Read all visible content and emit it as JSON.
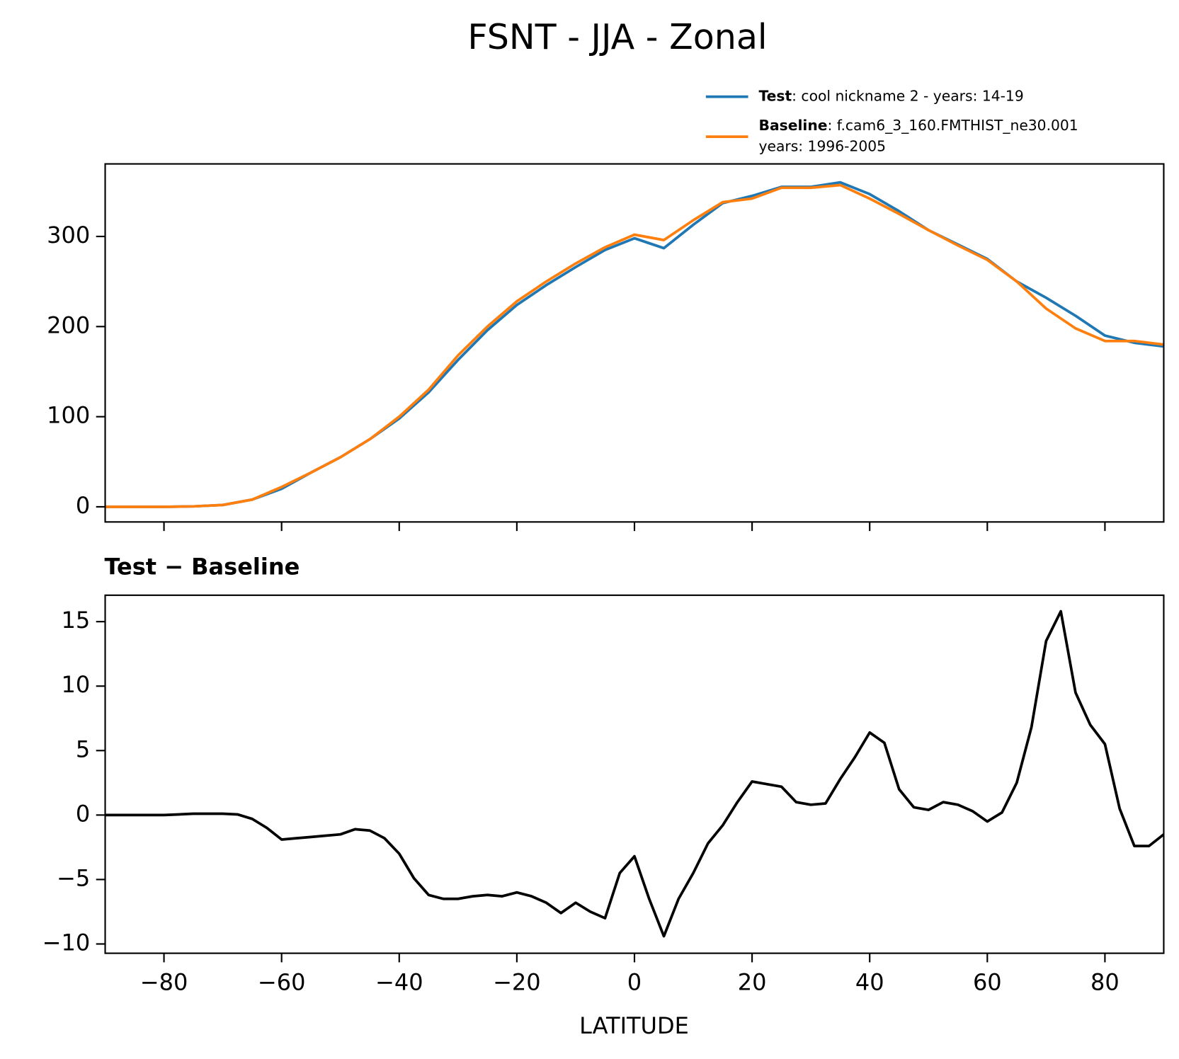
{
  "chart_data": [
    {
      "type": "line",
      "title": "FSNT - JJA - Zonal",
      "x": [
        -90,
        -85,
        -80,
        -75,
        -70,
        -65,
        -60,
        -55,
        -50,
        -45,
        -40,
        -35,
        -30,
        -25,
        -20,
        -15,
        -10,
        -5,
        0,
        5,
        10,
        15,
        20,
        25,
        30,
        35,
        40,
        45,
        50,
        55,
        60,
        65,
        70,
        75,
        80,
        85,
        90
      ],
      "series": [
        {
          "name": "Test",
          "label": ": cool nickname 2 - years: 14-19",
          "color": "#1f77b4",
          "values": [
            0,
            0,
            0,
            0.5,
            2,
            8,
            20,
            38,
            55,
            75,
            98,
            127,
            163,
            196,
            224,
            246,
            266,
            285,
            298,
            287,
            313,
            337,
            345,
            355,
            355,
            360,
            347,
            328,
            307,
            291,
            275,
            250,
            232,
            212,
            190,
            182,
            178
          ]
        },
        {
          "name": "Baseline",
          "label": ": f.cam6_3_160.FMTHIST_ne30.001",
          "label2": "years: 1996-2005",
          "color": "#ff7f0e",
          "values": [
            0,
            0,
            0,
            0.5,
            2,
            8,
            22,
            38,
            55,
            75,
            100,
            130,
            168,
            200,
            228,
            250,
            270,
            288,
            302,
            296,
            318,
            338,
            342,
            354,
            354,
            357,
            342,
            325,
            307,
            290,
            274,
            250,
            220,
            198,
            184,
            184,
            180
          ]
        }
      ],
      "xlim": [
        -90,
        90
      ],
      "xticks": [
        -80,
        -60,
        -40,
        -20,
        0,
        20,
        40,
        60,
        80
      ],
      "ylim": [
        -16.8,
        380.5
      ],
      "yticks": [
        0,
        100,
        200,
        300
      ]
    },
    {
      "type": "line",
      "title": "Test − Baseline",
      "xlabel": "LATITUDE",
      "x": [
        -90,
        -87.5,
        -85,
        -82.5,
        -80,
        -77.5,
        -75,
        -72.5,
        -70,
        -67.5,
        -65,
        -62.5,
        -60,
        -57.5,
        -55,
        -52.5,
        -50,
        -47.5,
        -45,
        -42.5,
        -40,
        -37.5,
        -35,
        -32.5,
        -30,
        -27.5,
        -25,
        -22.5,
        -20,
        -17.5,
        -15,
        -12.5,
        -10,
        -7.5,
        -5,
        -2.5,
        0,
        2.5,
        5,
        7.5,
        10,
        12.5,
        15,
        17.5,
        20,
        22.5,
        25,
        27.5,
        30,
        32.5,
        35,
        37.5,
        40,
        42.5,
        45,
        47.5,
        50,
        52.5,
        55,
        57.5,
        60,
        62.5,
        65,
        67.5,
        70,
        72.5,
        75,
        77.5,
        80,
        82.5,
        85,
        87.5,
        90
      ],
      "series": [
        {
          "color": "#000000",
          "values": [
            0,
            0,
            0,
            0,
            0,
            0.05,
            0.1,
            0.1,
            0.1,
            0.05,
            -0.3,
            -1.0,
            -1.9,
            -1.8,
            -1.7,
            -1.6,
            -1.5,
            -1.1,
            -1.2,
            -1.8,
            -3.0,
            -4.9,
            -6.2,
            -6.5,
            -6.5,
            -6.3,
            -6.2,
            -6.3,
            -6.0,
            -6.3,
            -6.8,
            -7.6,
            -6.8,
            -7.5,
            -8.0,
            -4.5,
            -3.2,
            -6.5,
            -9.4,
            -6.5,
            -4.5,
            -2.2,
            -0.8,
            1.0,
            2.6,
            2.4,
            2.2,
            1.0,
            0.8,
            0.9,
            2.8,
            4.5,
            6.4,
            5.6,
            2.0,
            0.6,
            0.4,
            1.0,
            0.8,
            0.3,
            -0.5,
            0.2,
            2.5,
            6.8,
            13.5,
            15.8,
            9.5,
            7.0,
            5.5,
            0.5,
            -2.4,
            -2.4,
            -1.5
          ]
        }
      ],
      "xlim": [
        -90,
        90
      ],
      "xticks": [
        {
          "value": -80,
          "label": "−80"
        },
        {
          "value": -60,
          "label": "−60"
        },
        {
          "value": -40,
          "label": "−40"
        },
        {
          "value": -20,
          "label": "−20"
        },
        0,
        20,
        40,
        60,
        80
      ],
      "ylim": [
        -10.72,
        17.05
      ],
      "yticks": [
        {
          "value": -10,
          "label": "−10"
        },
        {
          "value": -5,
          "label": "−5"
        },
        0,
        5,
        10,
        15
      ]
    }
  ]
}
